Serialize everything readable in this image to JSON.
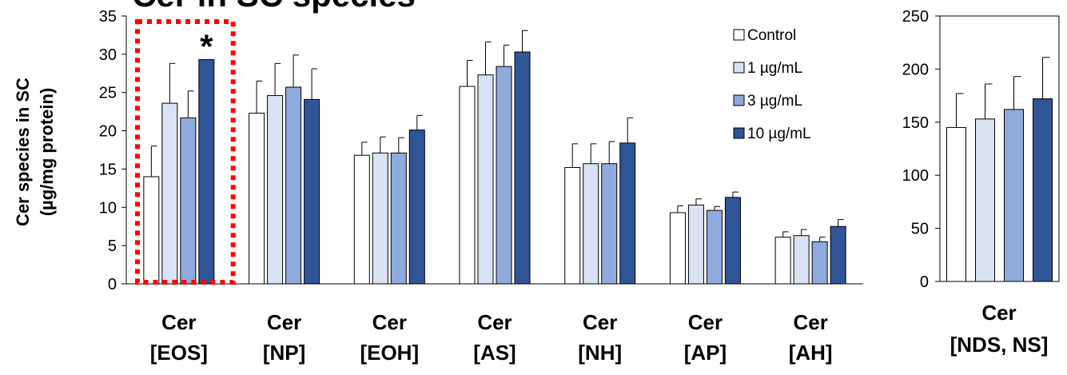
{
  "title_partial": "Cer in SC species",
  "colors": {
    "Control": "#ffffff",
    "1 µg/mL": "#dae3f3",
    "3 µg/mL": "#8faadc",
    "10 µg/mL": "#2f5597",
    "outline": "#000000",
    "highlight_box": "#ff0000"
  },
  "chart_data": [
    {
      "type": "bar",
      "ylabel": "Cer species in SC\n(µg/mg protein)",
      "ylim": [
        0,
        35
      ],
      "yticks": [
        0,
        5,
        10,
        15,
        20,
        25,
        30,
        35
      ],
      "grid": false,
      "legend_position": "top-right",
      "categories": [
        "Cer\n[EOS]",
        "Cer\n[NP]",
        "Cer\n[EOH]",
        "Cer\n[AS]",
        "Cer\n[NH]",
        "Cer\n[AP]",
        "Cer\n[AH]"
      ],
      "series": [
        {
          "name": "Control",
          "values": [
            14.0,
            22.3,
            16.8,
            25.8,
            15.2,
            9.3,
            6.1
          ],
          "errors": [
            4.0,
            4.2,
            1.7,
            3.4,
            3.1,
            0.9,
            0.7
          ]
        },
        {
          "name": "1 µg/mL",
          "values": [
            23.6,
            24.6,
            17.1,
            27.3,
            15.7,
            10.3,
            6.3
          ],
          "errors": [
            5.2,
            4.2,
            2.1,
            4.3,
            2.6,
            0.8,
            0.8
          ]
        },
        {
          "name": "3 µg/mL",
          "values": [
            21.7,
            25.7,
            17.1,
            28.4,
            15.7,
            9.6,
            5.5
          ],
          "errors": [
            3.5,
            4.2,
            2.0,
            2.8,
            2.9,
            0.5,
            0.6
          ]
        },
        {
          "name": "10 µg/mL",
          "values": [
            29.3,
            24.1,
            20.1,
            30.3,
            18.4,
            11.3,
            7.5
          ],
          "errors": [
            0,
            4.0,
            1.9,
            2.8,
            3.3,
            0.7,
            0.9
          ]
        }
      ],
      "annotations": [
        {
          "category": "Cer\n[EOS]",
          "series": "10 µg/mL",
          "text": "*"
        }
      ],
      "highlight": {
        "category": "Cer\n[EOS]",
        "style": "red dotted box"
      }
    },
    {
      "type": "bar",
      "ylim": [
        0,
        250
      ],
      "yticks": [
        0,
        50,
        100,
        150,
        200,
        250
      ],
      "grid": false,
      "categories": [
        "Cer\n[NDS, NS]"
      ],
      "series": [
        {
          "name": "Control",
          "values": [
            145
          ],
          "errors": [
            32
          ]
        },
        {
          "name": "1 µg/mL",
          "values": [
            153
          ],
          "errors": [
            33
          ]
        },
        {
          "name": "3 µg/mL",
          "values": [
            162
          ],
          "errors": [
            31
          ]
        },
        {
          "name": "10 µg/mL",
          "values": [
            172
          ],
          "errors": [
            39
          ]
        }
      ]
    }
  ]
}
